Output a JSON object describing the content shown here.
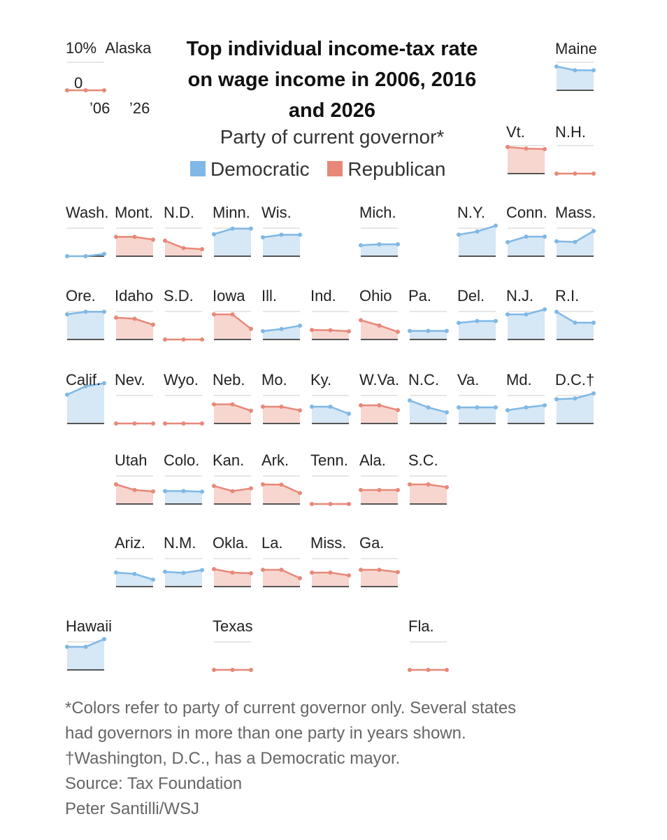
{
  "chart_data": {
    "type": "line",
    "title": "Top individual income-tax rate on wage income in 2006, 2016 and 2026",
    "subtitle": "Party of current governor*",
    "x": [
      "2006",
      "2016",
      "2026"
    ],
    "ylim": [
      0,
      14
    ],
    "key": {
      "state": "Alaska",
      "y_top_label": "10%",
      "y_zero_label": "0",
      "x_labels": [
        "’06",
        "’26"
      ]
    },
    "legend": [
      {
        "name": "Democratic",
        "color": "#7fb8e6"
      },
      {
        "name": "Republican",
        "color": "#e88878"
      }
    ],
    "colors": {
      "Democratic": {
        "line": "#7fb8e6",
        "fill": "#d6e7f5"
      },
      "Republican": {
        "line": "#e88878",
        "fill": "#f7d6d0"
      }
    },
    "states": [
      {
        "name": "Alaska",
        "party": "R",
        "values": [
          0,
          0,
          0
        ]
      },
      {
        "name": "Maine",
        "party": "D",
        "values": [
          8.5,
          7.15,
          7.15
        ]
      },
      {
        "name": "Vt.",
        "party": "R",
        "values": [
          9.5,
          8.95,
          8.75
        ]
      },
      {
        "name": "N.H.",
        "party": "R",
        "values": [
          0,
          0,
          0
        ]
      },
      {
        "name": "Wash.",
        "party": "D",
        "values": [
          0,
          0,
          0.8
        ]
      },
      {
        "name": "Mont.",
        "party": "R",
        "values": [
          6.9,
          6.9,
          5.9
        ]
      },
      {
        "name": "N.D.",
        "party": "R",
        "values": [
          5.54,
          2.9,
          2.5
        ]
      },
      {
        "name": "Minn.",
        "party": "D",
        "values": [
          7.85,
          9.85,
          9.85
        ]
      },
      {
        "name": "Wis.",
        "party": "D",
        "values": [
          6.75,
          7.65,
          7.65
        ]
      },
      {
        "name": "Mich.",
        "party": "D",
        "values": [
          3.9,
          4.25,
          4.25
        ]
      },
      {
        "name": "N.Y.",
        "party": "D",
        "values": [
          7.7,
          8.82,
          10.9
        ]
      },
      {
        "name": "Conn.",
        "party": "D",
        "values": [
          5.0,
          6.99,
          6.99
        ]
      },
      {
        "name": "Mass.",
        "party": "D",
        "values": [
          5.3,
          5.1,
          9.0
        ]
      },
      {
        "name": "Ore.",
        "party": "D",
        "values": [
          9.0,
          9.9,
          9.9
        ]
      },
      {
        "name": "Idaho",
        "party": "R",
        "values": [
          7.8,
          7.4,
          5.3
        ]
      },
      {
        "name": "S.D.",
        "party": "R",
        "values": [
          0,
          0,
          0
        ]
      },
      {
        "name": "Iowa",
        "party": "R",
        "values": [
          8.98,
          8.98,
          3.8
        ]
      },
      {
        "name": "Ill.",
        "party": "D",
        "values": [
          3.0,
          3.75,
          4.95
        ]
      },
      {
        "name": "Ind.",
        "party": "R",
        "values": [
          3.4,
          3.3,
          2.95
        ]
      },
      {
        "name": "Ohio",
        "party": "R",
        "values": [
          6.9,
          5.0,
          2.75
        ]
      },
      {
        "name": "Pa.",
        "party": "D",
        "values": [
          3.07,
          3.07,
          3.07
        ]
      },
      {
        "name": "Del.",
        "party": "D",
        "values": [
          5.95,
          6.6,
          6.6
        ]
      },
      {
        "name": "N.J.",
        "party": "D",
        "values": [
          8.97,
          8.97,
          10.75
        ]
      },
      {
        "name": "R.I.",
        "party": "D",
        "values": [
          9.9,
          5.99,
          5.99
        ]
      },
      {
        "name": "Calif.",
        "party": "D",
        "values": [
          10.3,
          13.3,
          14.4
        ]
      },
      {
        "name": "Nev.",
        "party": "R",
        "values": [
          0,
          0,
          0
        ]
      },
      {
        "name": "Wyo.",
        "party": "R",
        "values": [
          0,
          0,
          0
        ]
      },
      {
        "name": "Neb.",
        "party": "R",
        "values": [
          6.84,
          6.84,
          4.55
        ]
      },
      {
        "name": "Mo.",
        "party": "R",
        "values": [
          6.0,
          6.0,
          4.7
        ]
      },
      {
        "name": "Ky.",
        "party": "D",
        "values": [
          6.0,
          6.0,
          3.5
        ]
      },
      {
        "name": "W.Va.",
        "party": "R",
        "values": [
          6.5,
          6.5,
          4.82
        ]
      },
      {
        "name": "N.C.",
        "party": "D",
        "values": [
          8.25,
          5.75,
          3.99
        ]
      },
      {
        "name": "Va.",
        "party": "D",
        "values": [
          5.75,
          5.75,
          5.75
        ]
      },
      {
        "name": "Md.",
        "party": "D",
        "values": [
          4.75,
          5.75,
          6.5
        ]
      },
      {
        "name": "D.C.",
        "party": "D",
        "values": [
          8.7,
          8.95,
          10.75
        ]
      },
      {
        "name": "Utah",
        "party": "R",
        "values": [
          7.0,
          5.0,
          4.5
        ]
      },
      {
        "name": "Colo.",
        "party": "D",
        "values": [
          4.63,
          4.63,
          4.4
        ]
      },
      {
        "name": "Kan.",
        "party": "R",
        "values": [
          6.45,
          4.6,
          5.58
        ]
      },
      {
        "name": "Ark.",
        "party": "R",
        "values": [
          7.0,
          6.9,
          3.9
        ]
      },
      {
        "name": "Tenn.",
        "party": "R",
        "values": [
          0,
          0,
          0
        ]
      },
      {
        "name": "Ala.",
        "party": "R",
        "values": [
          5.0,
          5.0,
          5.0
        ]
      },
      {
        "name": "S.C.",
        "party": "R",
        "values": [
          7.0,
          7.0,
          6.0
        ]
      },
      {
        "name": "Ariz.",
        "party": "D",
        "values": [
          5.04,
          4.54,
          2.5
        ]
      },
      {
        "name": "N.M.",
        "party": "D",
        "values": [
          5.3,
          4.9,
          5.9
        ]
      },
      {
        "name": "Okla.",
        "party": "R",
        "values": [
          6.25,
          5.0,
          4.75
        ]
      },
      {
        "name": "La.",
        "party": "R",
        "values": [
          6.0,
          6.0,
          3.0
        ]
      },
      {
        "name": "Miss.",
        "party": "R",
        "values": [
          5.0,
          5.0,
          4.0
        ]
      },
      {
        "name": "Ga.",
        "party": "R",
        "values": [
          6.0,
          6.0,
          5.19
        ]
      },
      {
        "name": "Hawaii",
        "party": "D",
        "values": [
          8.25,
          8.25,
          11.0
        ]
      },
      {
        "name": "Texas",
        "party": "R",
        "values": [
          0,
          0,
          0
        ]
      },
      {
        "name": "Fla.",
        "party": "R",
        "values": [
          0,
          0,
          0
        ]
      }
    ]
  },
  "notes": {
    "footnote_line1": "*Colors refer to party of current governor only. Several states",
    "footnote_line2": "had governors in more than one party in years shown.",
    "footnote_dagger": "†Washington, D.C., has a Democratic mayor.",
    "source": "Source: Tax Foundation",
    "credit": "Peter Santilli/WSJ"
  }
}
